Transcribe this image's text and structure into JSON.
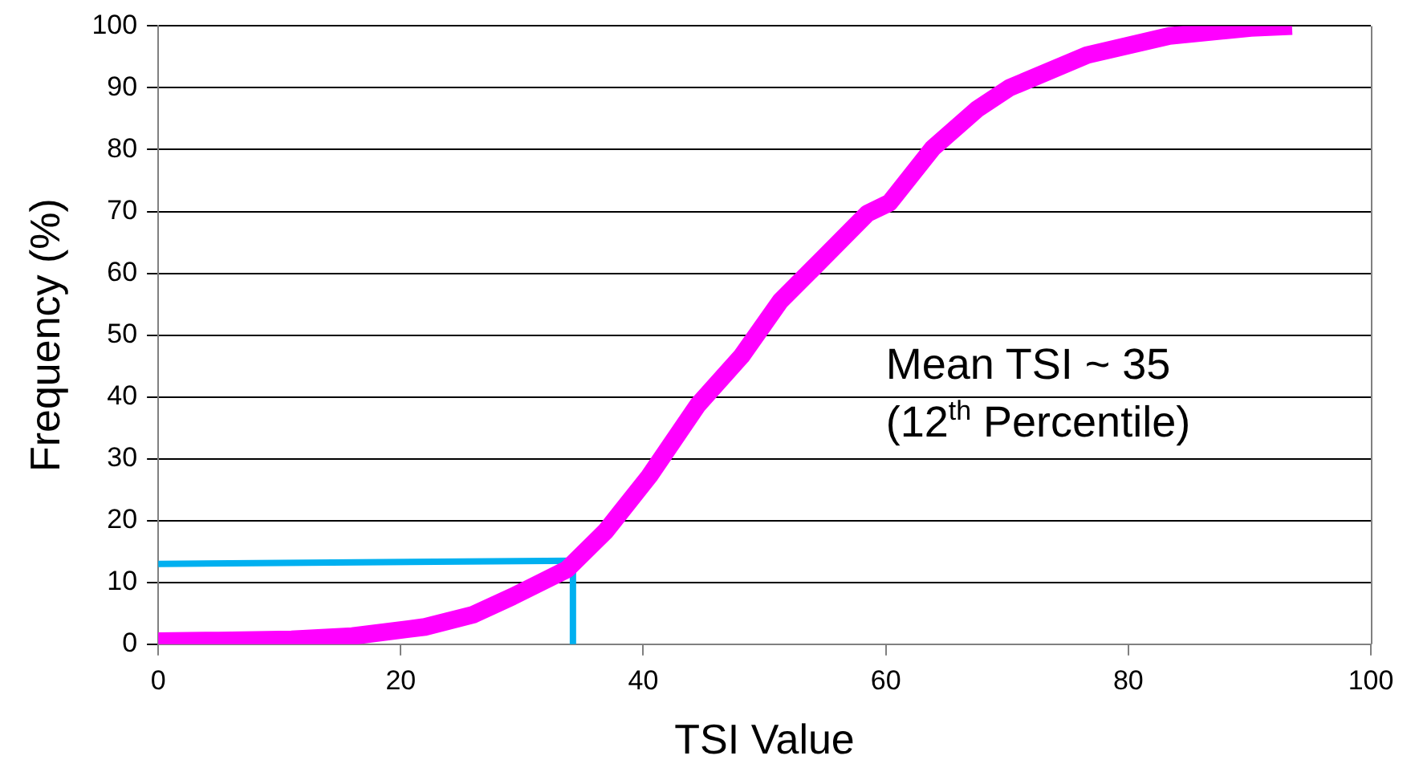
{
  "chart_data": {
    "type": "line",
    "xlabel": "TSI Value",
    "ylabel": "Frequency (%)",
    "annotations": [
      "Mean TSI ~ 35",
      "(12$^{th}$ Percentile)"
    ],
    "xlim": [
      0,
      100
    ],
    "xticks": [
      0,
      20,
      40,
      60,
      80,
      100
    ],
    "ylim": [
      0,
      100
    ],
    "yticks": [
      0,
      10,
      20,
      30,
      40,
      50,
      60,
      70,
      80,
      90,
      100
    ],
    "grid": "y",
    "series": [
      {
        "color": "#ff00ff",
        "x": [
          0,
          5,
          11,
          16,
          22,
          26,
          29.2,
          33.7,
          36.9,
          40.5,
          44.5,
          48.1,
          51.3,
          54,
          58.5,
          60.3,
          63.9,
          67.5,
          70.2,
          76.6,
          83.4,
          90.1,
          93.5
        ],
        "values": [
          0.5,
          0.6,
          0.8,
          1.3,
          2.8,
          4.8,
          7.7,
          12.1,
          18.3,
          27.2,
          38.7,
          46.6,
          55.5,
          60.8,
          69.7,
          71.4,
          80.3,
          86.5,
          90,
          95.3,
          98.4,
          99.7,
          100
        ]
      },
      {
        "color": "#00b0f0",
        "x": [
          0,
          34.2,
          34.2
        ],
        "values": [
          13,
          13.5,
          0
        ]
      }
    ]
  }
}
